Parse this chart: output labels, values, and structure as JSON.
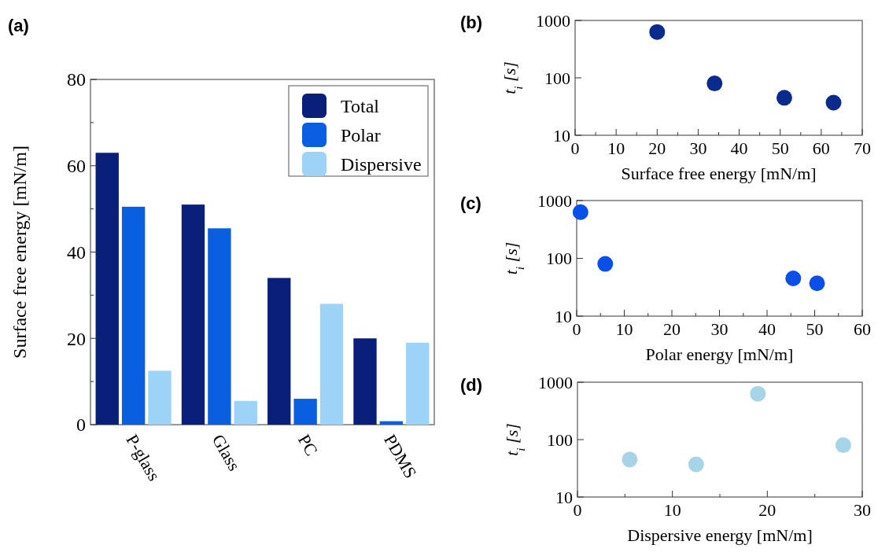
{
  "chart_data": [
    {
      "type": "bar",
      "title": "(a)",
      "ylabel": "Surface free energy [mN/m]",
      "categories": [
        "P-glass",
        "Glass",
        "PC",
        "PDMS"
      ],
      "series": [
        {
          "name": "Total",
          "color": "#0a1f7a",
          "values": [
            63,
            51,
            34,
            20
          ]
        },
        {
          "name": "Polar",
          "color": "#0a5fe0",
          "values": [
            50.5,
            45.5,
            6,
            0.8
          ]
        },
        {
          "name": "Dispersive",
          "color": "#9dd3f7",
          "values": [
            12.5,
            5.5,
            28,
            19
          ]
        }
      ],
      "ylim": [
        0,
        80
      ],
      "yticks": [
        0,
        {
          "value": 10,
          "label": null
        },
        20,
        {
          "value": 30,
          "label": null
        },
        40,
        {
          "value": 50,
          "label": null
        },
        60,
        {
          "value": 70,
          "label": null
        },
        80
      ],
      "legend": "top right"
    },
    {
      "type": "scatter",
      "title": "(b)",
      "xlabel": "Surface free energy [mN/m]",
      "ylabel": "t$_{i}$ [s]",
      "x": [
        20,
        34,
        51,
        63
      ],
      "values": [
        630,
        80,
        45,
        37
      ],
      "color": "#0a2a8c",
      "marker": "circle",
      "log": "y",
      "xlim": [
        0,
        70
      ],
      "xticks": [
        0,
        {
          "value": 5,
          "label": null
        },
        10,
        {
          "value": 15,
          "label": null
        },
        20,
        {
          "value": 25,
          "label": null
        },
        30,
        {
          "value": 35,
          "label": null
        },
        40,
        {
          "value": 45,
          "label": null
        },
        50,
        {
          "value": 55,
          "label": null
        },
        60,
        {
          "value": 65,
          "label": null
        },
        70
      ],
      "ylim": [
        10,
        1000
      ],
      "yticks": [
        10,
        100,
        1000
      ]
    },
    {
      "type": "scatter",
      "title": "(c)",
      "xlabel": "Polar energy [mN/m]",
      "ylabel": "t$_{i}$ [s]",
      "x": [
        0.8,
        6,
        45.5,
        50.5
      ],
      "values": [
        630,
        80,
        45,
        37
      ],
      "color": "#0a4fe8",
      "marker": "circle",
      "log": "y",
      "xlim": [
        0,
        60
      ],
      "xticks": [
        0,
        {
          "value": 5,
          "label": null
        },
        10,
        {
          "value": 15,
          "label": null
        },
        20,
        {
          "value": 25,
          "label": null
        },
        30,
        {
          "value": 35,
          "label": null
        },
        40,
        {
          "value": 45,
          "label": null
        },
        50,
        {
          "value": 55,
          "label": null
        },
        60
      ],
      "ylim": [
        10,
        1000
      ],
      "yticks": [
        10,
        100,
        1000
      ]
    },
    {
      "type": "scatter",
      "title": "(d)",
      "xlabel": "Dispersive energy [mN/m]",
      "ylabel": "t$_{i}$ [s]",
      "x": [
        5.5,
        12.5,
        19,
        28
      ],
      "values": [
        45,
        37,
        630,
        80
      ],
      "color": "#a8d4e8",
      "marker": "circle",
      "log": "y",
      "xlim": [
        0,
        30
      ],
      "xticks": [
        0,
        {
          "value": 5,
          "label": null
        },
        10,
        {
          "value": 15,
          "label": null
        },
        20,
        {
          "value": 25,
          "label": null
        },
        30
      ],
      "ylim": [
        10,
        1000
      ],
      "yticks": [
        10,
        100,
        1000
      ]
    }
  ]
}
